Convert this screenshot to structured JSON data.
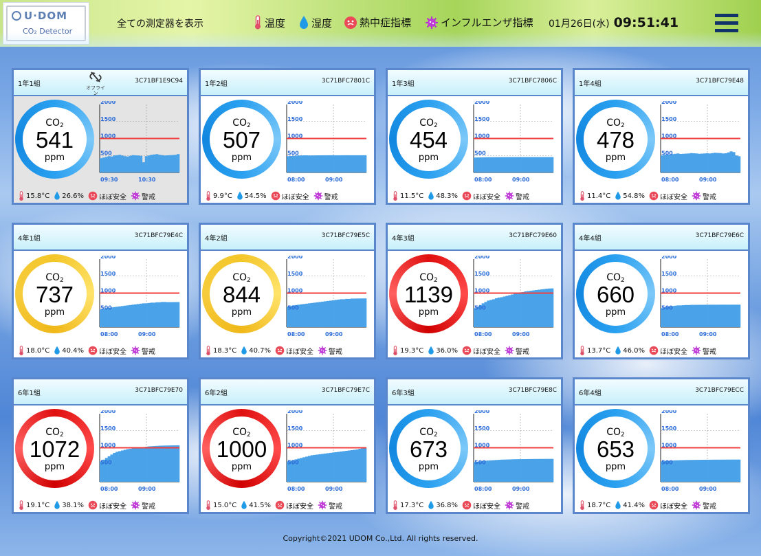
{
  "header": {
    "logo_brand": "U·DOM",
    "logo_sub": "CO₂ Detector",
    "show_all": "全ての測定器を表示",
    "legend": {
      "temp": "温度",
      "humidity": "湿度",
      "heatstroke": "熱中症指標",
      "influenza": "インフルエンザ指標"
    },
    "date": "01月26日(水)",
    "time": "09:51:41"
  },
  "common": {
    "co2": "CO",
    "co2_sub": "2",
    "unit": "ppm",
    "safe": "ほぼ安全",
    "alert": "警戒",
    "offline": "オフライン"
  },
  "colors": {
    "blue": "#2aa0f0",
    "yellow": "#f3c62a",
    "red": "#e01010",
    "threshold": "#f04040",
    "bars": "#4aa3e8",
    "border": "#5a86cc"
  },
  "chart_axis": {
    "yticks": [
      "2000",
      "1500",
      "1000",
      "500"
    ],
    "threshold": 1000,
    "ymax": 2000
  },
  "devices": [
    {
      "name": "1年1組",
      "id": "3C71BF1E9C94",
      "co2": 541,
      "ring": "blue",
      "offline": true,
      "temp": "15.8°C",
      "humidity": "26.6%",
      "xticks": [
        "09:30",
        "10:30"
      ],
      "series": [
        420,
        440,
        460,
        480,
        470,
        500,
        510,
        520,
        500,
        480,
        470,
        490,
        510,
        505,
        500,
        490,
        300,
        480,
        500,
        520,
        530,
        540,
        520,
        510,
        500,
        505,
        510,
        515,
        520,
        541
      ]
    },
    {
      "name": "1年2組",
      "id": "3C71BFC7801C",
      "co2": 507,
      "ring": "blue",
      "offline": false,
      "temp": "9.9°C",
      "humidity": "54.5%",
      "xticks": [
        "08:00",
        "09:00"
      ],
      "series": [
        480,
        485,
        490,
        495,
        500,
        500,
        505,
        505,
        500,
        500,
        502,
        505,
        505,
        506,
        506,
        507,
        507,
        507,
        506,
        506,
        507,
        507,
        508,
        507,
        507,
        507,
        507,
        507,
        507,
        507
      ]
    },
    {
      "name": "1年3組",
      "id": "3C71BFC7806C",
      "co2": 454,
      "ring": "blue",
      "offline": false,
      "temp": "11.5°C",
      "humidity": "48.3%",
      "xticks": [
        "08:00",
        "09:00"
      ],
      "series": [
        440,
        442,
        445,
        446,
        448,
        450,
        450,
        451,
        452,
        452,
        453,
        453,
        454,
        454,
        454,
        454,
        454,
        454,
        454,
        454,
        454,
        454,
        454,
        454,
        454,
        454,
        454,
        454,
        454,
        454
      ]
    },
    {
      "name": "1年4組",
      "id": "3C71BFC79E48",
      "co2": 478,
      "ring": "blue",
      "offline": false,
      "temp": "11.4°C",
      "humidity": "54.8%",
      "xticks": [
        "08:00",
        "09:00"
      ],
      "series": [
        500,
        520,
        530,
        525,
        540,
        550,
        560,
        545,
        550,
        555,
        560,
        570,
        565,
        560,
        550,
        555,
        560,
        565,
        560,
        570,
        580,
        575,
        570,
        560,
        565,
        590,
        620,
        600,
        500,
        478
      ]
    },
    {
      "name": "4年1組",
      "id": "3C71BFC79E4C",
      "co2": 737,
      "ring": "yellow",
      "offline": false,
      "temp": "18.0°C",
      "humidity": "40.4%",
      "xticks": [
        "08:00",
        "09:00"
      ],
      "series": [
        520,
        540,
        560,
        570,
        580,
        590,
        600,
        610,
        620,
        630,
        640,
        650,
        660,
        670,
        680,
        690,
        700,
        700,
        710,
        720,
        720,
        730,
        730,
        740,
        740,
        735,
        735,
        736,
        737,
        737
      ]
    },
    {
      "name": "4年2組",
      "id": "3C71BFC79E5C",
      "co2": 844,
      "ring": "yellow",
      "offline": false,
      "temp": "18.3°C",
      "humidity": "40.7%",
      "xticks": [
        "08:00",
        "09:00"
      ],
      "series": [
        600,
        620,
        640,
        650,
        660,
        670,
        680,
        690,
        700,
        710,
        720,
        730,
        740,
        750,
        760,
        770,
        780,
        790,
        800,
        810,
        820,
        820,
        830,
        830,
        840,
        840,
        842,
        843,
        844,
        844
      ]
    },
    {
      "name": "4年3組",
      "id": "3C71BFC79E60",
      "co2": 1139,
      "ring": "red",
      "offline": false,
      "temp": "19.3°C",
      "humidity": "36.0%",
      "xticks": [
        "08:00",
        "09:00"
      ],
      "series": [
        560,
        600,
        650,
        700,
        740,
        780,
        800,
        820,
        850,
        870,
        880,
        900,
        920,
        940,
        960,
        980,
        1000,
        1010,
        1030,
        1050,
        1060,
        1070,
        1080,
        1090,
        1100,
        1110,
        1120,
        1130,
        1135,
        1139
      ]
    },
    {
      "name": "4年4組",
      "id": "3C71BFC79E6C",
      "co2": 660,
      "ring": "blue",
      "offline": false,
      "temp": "13.7°C",
      "humidity": "46.0%",
      "xticks": [
        "08:00",
        "09:00"
      ],
      "series": [
        560,
        580,
        600,
        610,
        620,
        630,
        640,
        640,
        645,
        650,
        650,
        655,
        655,
        656,
        657,
        657,
        658,
        658,
        659,
        659,
        659,
        660,
        660,
        660,
        660,
        660,
        660,
        660,
        660,
        660
      ]
    },
    {
      "name": "6年1組",
      "id": "3C71BFC79E70",
      "co2": 1072,
      "ring": "red",
      "offline": false,
      "temp": "19.1°C",
      "humidity": "38.1%",
      "xticks": [
        "08:00",
        "09:00"
      ],
      "series": [
        600,
        650,
        700,
        750,
        800,
        850,
        880,
        900,
        920,
        940,
        960,
        970,
        980,
        990,
        1000,
        1010,
        1020,
        1030,
        1040,
        1045,
        1050,
        1055,
        1060,
        1062,
        1065,
        1066,
        1068,
        1070,
        1071,
        1072
      ]
    },
    {
      "name": "6年2組",
      "id": "3C71BFC79E7C",
      "co2": 1000,
      "ring": "red",
      "offline": false,
      "temp": "15.0°C",
      "humidity": "41.5%",
      "xticks": [
        "08:00",
        "09:00"
      ],
      "series": [
        600,
        620,
        640,
        660,
        680,
        700,
        720,
        740,
        760,
        780,
        790,
        800,
        810,
        820,
        830,
        840,
        850,
        860,
        870,
        880,
        890,
        900,
        910,
        920,
        930,
        940,
        950,
        970,
        990,
        1000
      ]
    },
    {
      "name": "6年3組",
      "id": "3C71BFC79E8C",
      "co2": 673,
      "ring": "blue",
      "offline": false,
      "temp": "17.3°C",
      "humidity": "36.8%",
      "xticks": [
        "08:00",
        "09:00"
      ],
      "series": [
        580,
        590,
        600,
        610,
        620,
        625,
        630,
        635,
        640,
        645,
        650,
        652,
        655,
        657,
        660,
        662,
        664,
        665,
        666,
        667,
        668,
        669,
        670,
        671,
        671,
        672,
        672,
        673,
        673,
        673
      ]
    },
    {
      "name": "6年4組",
      "id": "3C71BFC79ECC",
      "co2": 653,
      "ring": "blue",
      "offline": false,
      "temp": "18.7°C",
      "humidity": "41.4%",
      "xticks": [
        "08:00",
        "09:00"
      ],
      "series": [
        600,
        610,
        615,
        620,
        625,
        630,
        632,
        635,
        637,
        640,
        641,
        642,
        643,
        644,
        645,
        646,
        647,
        648,
        648,
        649,
        650,
        650,
        651,
        651,
        652,
        652,
        652,
        653,
        653,
        653
      ]
    }
  ],
  "footer": {
    "copyright": "Copyright©2021 UDOM Co.,Ltd. All rights reserved."
  }
}
